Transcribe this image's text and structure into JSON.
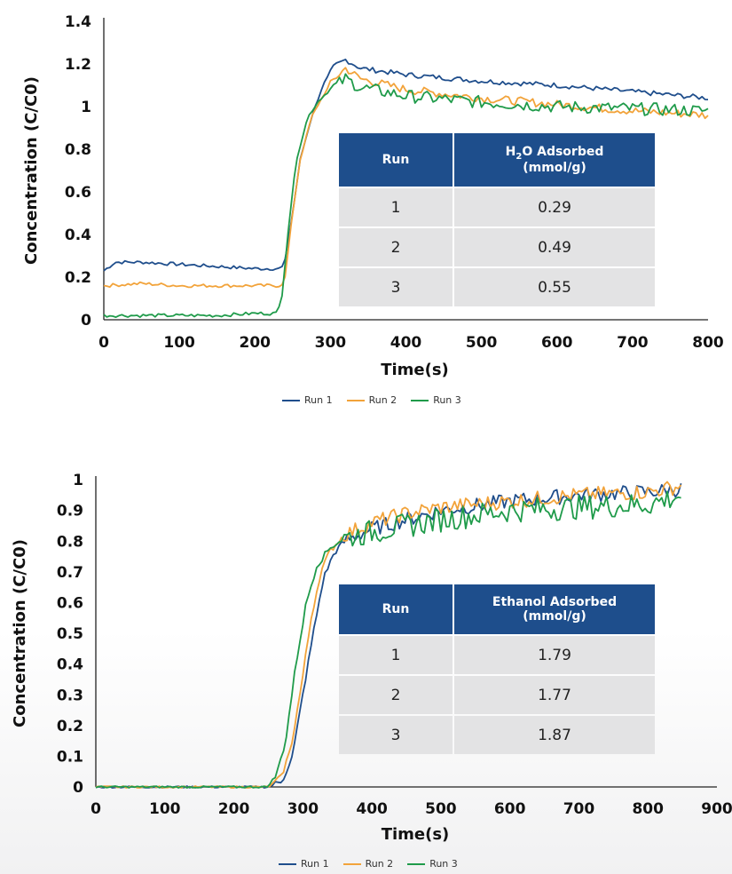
{
  "chart_data": [
    {
      "type": "line",
      "xlabel": "Time(s)",
      "ylabel": "Concentration (C/C0)",
      "xlim": [
        0,
        800
      ],
      "ylim": [
        0,
        1.4
      ],
      "x_ticks": [
        "0",
        "100",
        "200",
        "300",
        "400",
        "500",
        "600",
        "700",
        "800"
      ],
      "y_ticks": [
        "0",
        "0.2",
        "0.4",
        "0.6",
        "0.8",
        "1",
        "1.2",
        "1.4"
      ],
      "legend_position": "bottom-center",
      "series": [
        {
          "name": "Run 1",
          "color": "#1f4e8c",
          "points": [
            [
              0,
              0.23
            ],
            [
              15,
              0.27
            ],
            [
              50,
              0.27
            ],
            [
              100,
              0.26
            ],
            [
              150,
              0.25
            ],
            [
              200,
              0.24
            ],
            [
              235,
              0.24
            ],
            [
              240,
              0.28
            ],
            [
              250,
              0.5
            ],
            [
              260,
              0.75
            ],
            [
              275,
              0.95
            ],
            [
              290,
              1.1
            ],
            [
              305,
              1.19
            ],
            [
              320,
              1.22
            ],
            [
              340,
              1.18
            ],
            [
              400,
              1.15
            ],
            [
              500,
              1.12
            ],
            [
              600,
              1.1
            ],
            [
              700,
              1.07
            ],
            [
              800,
              1.04
            ]
          ]
        },
        {
          "name": "Run 2",
          "color": "#f2a33a",
          "points": [
            [
              0,
              0.16
            ],
            [
              50,
              0.17
            ],
            [
              100,
              0.16
            ],
            [
              150,
              0.16
            ],
            [
              200,
              0.16
            ],
            [
              235,
              0.16
            ],
            [
              240,
              0.2
            ],
            [
              250,
              0.5
            ],
            [
              260,
              0.75
            ],
            [
              275,
              0.95
            ],
            [
              290,
              1.05
            ],
            [
              305,
              1.13
            ],
            [
              320,
              1.18
            ],
            [
              340,
              1.13
            ],
            [
              400,
              1.08
            ],
            [
              500,
              1.04
            ],
            [
              600,
              1.01
            ],
            [
              700,
              0.98
            ],
            [
              800,
              0.96
            ]
          ]
        },
        {
          "name": "Run 3",
          "color": "#1f9b4a",
          "points": [
            [
              0,
              0.02
            ],
            [
              50,
              0.02
            ],
            [
              100,
              0.02
            ],
            [
              150,
              0.02
            ],
            [
              200,
              0.03
            ],
            [
              228,
              0.03
            ],
            [
              235,
              0.08
            ],
            [
              245,
              0.45
            ],
            [
              255,
              0.75
            ],
            [
              270,
              0.95
            ],
            [
              285,
              1.03
            ],
            [
              300,
              1.08
            ],
            [
              320,
              1.13
            ],
            [
              340,
              1.09
            ],
            [
              400,
              1.05
            ],
            [
              500,
              1.02
            ],
            [
              600,
              1.0
            ],
            [
              700,
              0.99
            ],
            [
              800,
              0.98
            ]
          ]
        }
      ],
      "table": {
        "headers": [
          "Run",
          "H₂O Adsorbed (mmol/g)"
        ],
        "rows": [
          [
            "1",
            "0.29"
          ],
          [
            "2",
            "0.49"
          ],
          [
            "3",
            "0.55"
          ]
        ]
      }
    },
    {
      "type": "line",
      "xlabel": "Time(s)",
      "ylabel": "Concentration (C/C0)",
      "xlim": [
        0,
        900
      ],
      "ylim": [
        0,
        1
      ],
      "x_ticks": [
        "0",
        "100",
        "200",
        "300",
        "400",
        "500",
        "600",
        "700",
        "800",
        "900"
      ],
      "y_ticks": [
        "0",
        "0.1",
        "0.2",
        "0.3",
        "0.4",
        "0.5",
        "0.6",
        "0.7",
        "0.8",
        "0.9",
        "1"
      ],
      "legend_position": "bottom-center",
      "series": [
        {
          "name": "Run 1",
          "color": "#1f4e8c",
          "points": [
            [
              0,
              0.0
            ],
            [
              100,
              0.0
            ],
            [
              200,
              0.0
            ],
            [
              250,
              0.0
            ],
            [
              270,
              0.02
            ],
            [
              285,
              0.1
            ],
            [
              300,
              0.3
            ],
            [
              315,
              0.5
            ],
            [
              330,
              0.68
            ],
            [
              345,
              0.76
            ],
            [
              360,
              0.8
            ],
            [
              400,
              0.84
            ],
            [
              450,
              0.87
            ],
            [
              500,
              0.9
            ],
            [
              600,
              0.93
            ],
            [
              700,
              0.95
            ],
            [
              800,
              0.96
            ],
            [
              850,
              0.97
            ]
          ]
        },
        {
          "name": "Run 2",
          "color": "#f2a33a",
          "points": [
            [
              0,
              0.0
            ],
            [
              100,
              0.0
            ],
            [
              200,
              0.0
            ],
            [
              250,
              0.0
            ],
            [
              268,
              0.03
            ],
            [
              282,
              0.12
            ],
            [
              298,
              0.33
            ],
            [
              312,
              0.55
            ],
            [
              326,
              0.7
            ],
            [
              340,
              0.77
            ],
            [
              360,
              0.82
            ],
            [
              400,
              0.86
            ],
            [
              450,
              0.89
            ],
            [
              500,
              0.91
            ],
            [
              600,
              0.93
            ],
            [
              700,
              0.95
            ],
            [
              800,
              0.96
            ],
            [
              850,
              0.98
            ]
          ]
        },
        {
          "name": "Run 3",
          "color": "#1f9b4a",
          "points": [
            [
              0,
              0.0
            ],
            [
              100,
              0.0
            ],
            [
              200,
              0.0
            ],
            [
              248,
              0.0
            ],
            [
              262,
              0.04
            ],
            [
              275,
              0.15
            ],
            [
              290,
              0.4
            ],
            [
              305,
              0.6
            ],
            [
              320,
              0.72
            ],
            [
              340,
              0.78
            ],
            [
              360,
              0.81
            ],
            [
              400,
              0.83
            ],
            [
              450,
              0.85
            ],
            [
              500,
              0.87
            ],
            [
              600,
              0.9
            ],
            [
              700,
              0.91
            ],
            [
              800,
              0.92
            ],
            [
              850,
              0.95
            ]
          ]
        }
      ],
      "table": {
        "headers": [
          "Run",
          "Ethanol Adsorbed (mmol/g)"
        ],
        "rows": [
          [
            "1",
            "1.79"
          ],
          [
            "2",
            "1.77"
          ],
          [
            "3",
            "1.87"
          ]
        ]
      }
    }
  ]
}
